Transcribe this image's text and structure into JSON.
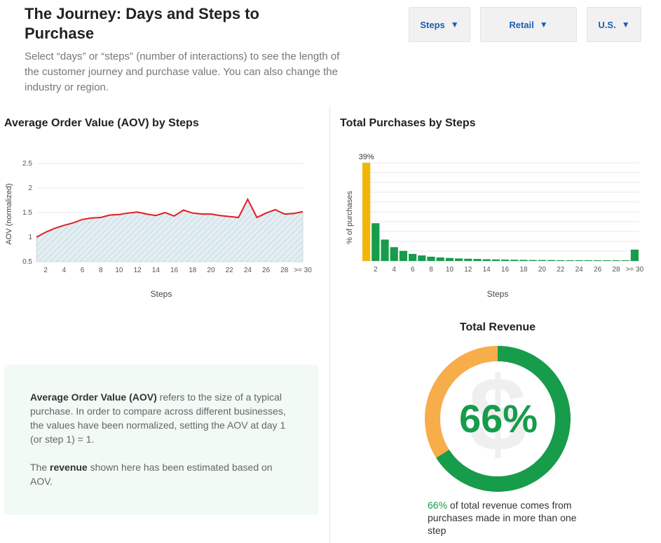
{
  "header": {
    "title": "The Journey: Days and Steps to Purchase",
    "description": "Select “days” or “steps” (number of interactions) to see the length of the customer journey and purchase value. You can also change the industry or region."
  },
  "controls": {
    "metric": {
      "label": "Steps"
    },
    "industry": {
      "label": "Retail"
    },
    "region": {
      "label": "U.S."
    },
    "arrow_glyph": "▼"
  },
  "colors": {
    "aov_line": "#e31c23",
    "aov_fill": "#d8e7ee",
    "bar_green": "#169c4b",
    "bar_highlight": "#f2b705",
    "donut_orange": "#f7ad4a",
    "grid": "#e8e8e8"
  },
  "info": {
    "aov_term": "Average Order Value (AOV)",
    "aov_text": " refers to the size of a typical purchase. In order to compare across different businesses, the values have been normalized, setting the AOV at day 1 (or step 1) = 1.",
    "rev_pre": "The ",
    "rev_term": "revenue",
    "rev_text": " shown here has been estimated based on AOV."
  },
  "revenue": {
    "title": "Total Revenue",
    "percent_label": "66%",
    "caption_pct": "66%",
    "caption_text": " of total revenue comes from purchases made in more than one step",
    "icon": "dollar-sign-icon"
  },
  "chart_data": [
    {
      "id": "aov",
      "type": "area",
      "title": "Average Order Value (AOV) by Steps",
      "xlabel": "Steps",
      "ylabel": "AOV (normalized)",
      "ylim": [
        0.5,
        2.5
      ],
      "yticks": [
        "0.5",
        "1",
        "1.5",
        "2",
        "2.5"
      ],
      "x": [
        1,
        2,
        3,
        4,
        5,
        6,
        7,
        8,
        9,
        10,
        11,
        12,
        13,
        14,
        15,
        16,
        17,
        18,
        19,
        20,
        21,
        22,
        23,
        24,
        25,
        26,
        27,
        28,
        29,
        30
      ],
      "xtick_labels": [
        "2",
        "4",
        "6",
        "8",
        "10",
        "12",
        "14",
        "16",
        "18",
        "20",
        "22",
        "24",
        "26",
        "28",
        ">= 30"
      ],
      "xtick_positions": [
        2,
        4,
        6,
        8,
        10,
        12,
        14,
        16,
        18,
        20,
        22,
        24,
        26,
        28,
        30
      ],
      "series": [
        {
          "values": [
            1.0,
            1.1,
            1.18,
            1.24,
            1.29,
            1.36,
            1.39,
            1.4,
            1.45,
            1.46,
            1.49,
            1.51,
            1.47,
            1.44,
            1.5,
            1.43,
            1.55,
            1.49,
            1.47,
            1.47,
            1.44,
            1.42,
            1.4,
            1.77,
            1.4,
            1.49,
            1.56,
            1.47,
            1.48,
            1.52
          ]
        }
      ],
      "grid": true,
      "legend": "none"
    },
    {
      "id": "purchases",
      "type": "bar",
      "title": "Total Purchases by Steps",
      "xlabel": "Steps",
      "ylabel": "% of purchases",
      "ylim": [
        0,
        39
      ],
      "x": [
        1,
        2,
        3,
        4,
        5,
        6,
        7,
        8,
        9,
        10,
        11,
        12,
        13,
        14,
        15,
        16,
        17,
        18,
        19,
        20,
        21,
        22,
        23,
        24,
        25,
        26,
        27,
        28,
        29,
        30
      ],
      "xtick_labels": [
        "2",
        "4",
        "6",
        "8",
        "10",
        "12",
        "14",
        "16",
        "18",
        "20",
        "22",
        "24",
        "26",
        "28",
        ">= 30"
      ],
      "xtick_positions": [
        2,
        4,
        6,
        8,
        10,
        12,
        14,
        16,
        18,
        20,
        22,
        24,
        26,
        28,
        30
      ],
      "values": [
        39,
        15,
        8.5,
        5.5,
        4,
        2.8,
        2.2,
        1.7,
        1.4,
        1.2,
        1,
        0.9,
        0.8,
        0.7,
        0.6,
        0.55,
        0.5,
        0.45,
        0.4,
        0.38,
        0.35,
        0.32,
        0.3,
        0.28,
        0.26,
        0.24,
        0.22,
        0.2,
        0.18,
        4.5
      ],
      "data_labels": [
        "39%"
      ],
      "highlight_index": 0,
      "grid": true,
      "legend": "none"
    },
    {
      "id": "revenue-donut",
      "type": "pie",
      "title": "Total Revenue",
      "slices": [
        {
          "value": 66
        },
        {
          "value": 34
        }
      ]
    }
  ]
}
